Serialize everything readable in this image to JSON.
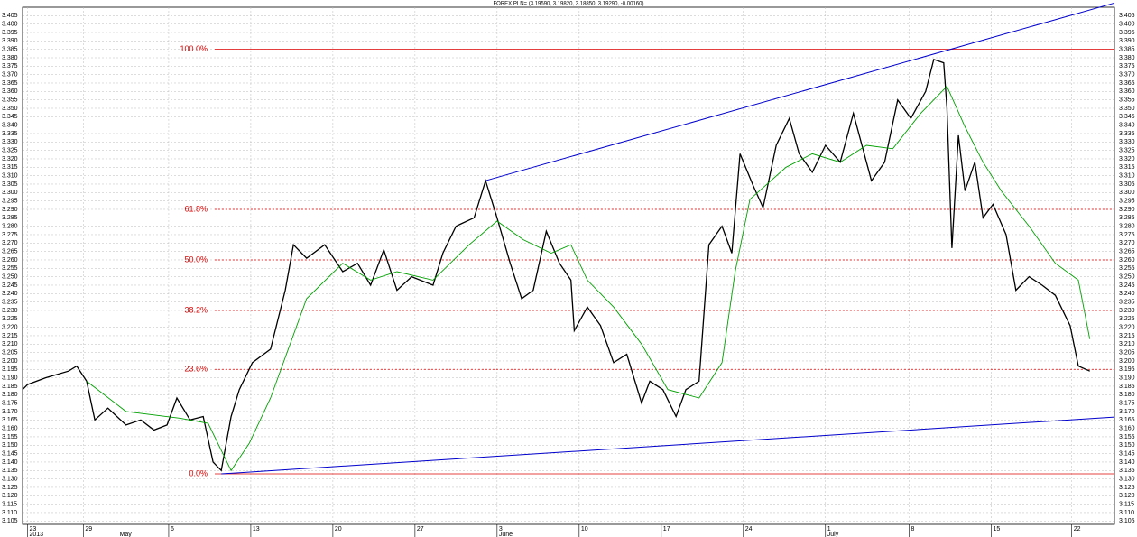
{
  "chart_data": {
    "type": "line",
    "title": "FOREX PLN= (3.19590, 3.19820, 3.18850, 3.19290, -0.00160)",
    "x": [
      -0.3,
      0,
      1.1,
      2.5,
      3.0,
      3.6,
      4.1,
      4.9,
      6.0,
      6.9,
      7.7,
      8.5,
      9.1,
      9.9,
      10.7,
      11.3,
      11.8,
      12.4,
      12.9,
      13.7,
      14.8,
      15.7,
      16.2,
      17.0,
      18.1,
      19.2,
      20.1,
      20.9,
      21.7,
      22.5,
      23.4,
      24.7,
      25.3,
      26.1,
      27.2,
      27.9,
      28.6,
      29.4,
      30.1,
      30.8,
      31.6,
      32.4,
      33.1,
      33.3,
      34.1,
      34.9,
      35.7,
      36.5,
      37.4,
      37.9,
      38.7,
      39.5,
      40.1,
      40.9,
      41.5,
      42.3,
      42.9,
      43.4,
      44.2,
      44.8,
      45.6,
      46.4,
      47.0,
      47.8,
      48.6,
      49.5,
      50.3,
      51.4,
      52.2,
      53.0,
      53.8,
      54.7,
      55.2,
      55.8,
      56.0,
      56.3,
      56.7,
      57.1,
      57.7,
      58.2,
      58.8,
      59.6,
      60.2,
      61.0,
      61.8,
      62.6,
      63.5,
      64.0,
      64.7
    ],
    "series": [
      {
        "color": "#000000",
        "values": [
          3.183,
          3.186,
          3.19,
          3.194,
          3.197,
          3.188,
          3.165,
          3.172,
          3.162,
          3.165,
          3.159,
          3.162,
          3.178,
          3.165,
          3.167,
          3.14,
          3.135,
          3.167,
          3.183,
          3.199,
          3.207,
          3.242,
          3.269,
          3.261,
          3.269,
          3.253,
          3.258,
          3.245,
          3.266,
          3.242,
          3.25,
          3.245,
          3.264,
          3.28,
          3.285,
          3.307,
          3.285,
          3.258,
          3.237,
          3.242,
          3.277,
          3.258,
          3.248,
          3.218,
          3.232,
          3.221,
          3.199,
          3.204,
          3.175,
          3.188,
          3.183,
          3.167,
          3.183,
          3.188,
          3.269,
          3.28,
          3.264,
          3.323,
          3.304,
          3.291,
          3.328,
          3.344,
          3.323,
          3.312,
          3.328,
          3.318,
          3.347,
          3.307,
          3.318,
          3.355,
          3.344,
          3.36,
          3.379,
          3.377,
          3.35,
          3.267,
          3.334,
          3.301,
          3.318,
          3.285,
          3.293,
          3.275,
          3.242,
          3.25,
          3.245,
          3.239,
          3.221,
          3.197,
          3.194
        ]
      },
      {
        "color": "#00a000",
        "x": [
          3.6,
          6.0,
          9.3,
          11.0,
          12.4,
          13.5,
          14.8,
          17.0,
          19.2,
          20.9,
          22.5,
          24.7,
          26.9,
          28.6,
          30.2,
          31.9,
          33.1,
          34.1,
          35.7,
          37.4,
          39.0,
          40.9,
          42.3,
          43.1,
          44.0,
          46.2,
          47.8,
          49.5,
          51.1,
          52.7,
          54.4,
          56.0,
          57.1,
          58.2,
          59.3,
          61.0,
          62.6,
          64.0,
          64.7
        ],
        "values": [
          3.188,
          3.17,
          3.166,
          3.163,
          3.135,
          3.151,
          3.178,
          3.237,
          3.258,
          3.248,
          3.253,
          3.248,
          3.269,
          3.283,
          3.272,
          3.264,
          3.269,
          3.248,
          3.232,
          3.21,
          3.183,
          3.178,
          3.199,
          3.253,
          3.296,
          3.315,
          3.323,
          3.318,
          3.328,
          3.326,
          3.347,
          3.363,
          3.339,
          3.318,
          3.301,
          3.28,
          3.258,
          3.248,
          3.213
        ]
      }
    ],
    "trendlines": [
      {
        "color": "#0000cc",
        "x": [
          27.9,
          66.2
        ],
        "values": [
          3.307,
          3.4125
        ]
      },
      {
        "color": "#0000cc",
        "x": [
          11.8,
          66.2
        ],
        "values": [
          3.133,
          3.1667
        ]
      }
    ],
    "levels": [
      {
        "label": "100.0%",
        "value": 3.385
      },
      {
        "label": "61.8%",
        "value": 3.29
      },
      {
        "label": "50.0%",
        "value": 3.26
      },
      {
        "label": "38.2%",
        "value": 3.23
      },
      {
        "label": "23.6%",
        "value": 3.195
      },
      {
        "label": "0.0%",
        "value": 3.133
      }
    ],
    "level_color": "#dd0000",
    "xlim": [
      -0.3,
      66.2
    ],
    "ylim": [
      3.103,
      3.41
    ],
    "grid": true,
    "xticks": [
      {
        "value": 0,
        "label": "23"
      },
      {
        "value": 3.4,
        "label": "29"
      },
      {
        "value": 8.6,
        "label": "6"
      },
      {
        "value": 13.6,
        "label": "13"
      },
      {
        "value": 18.6,
        "label": "20"
      },
      {
        "value": 23.6,
        "label": "27"
      },
      {
        "value": 28.6,
        "label": "3"
      },
      {
        "value": 33.6,
        "label": "10"
      },
      {
        "value": 38.6,
        "label": "17"
      },
      {
        "value": 43.6,
        "label": "24"
      },
      {
        "value": 48.6,
        "label": "1"
      },
      {
        "value": 53.7,
        "label": "8"
      },
      {
        "value": 58.7,
        "label": "15"
      },
      {
        "value": 63.6,
        "label": "22"
      }
    ],
    "x_groups": [
      {
        "value": 0,
        "label": "2013"
      },
      {
        "value": 5.5,
        "label": "May"
      },
      {
        "value": 28.6,
        "label": "June"
      },
      {
        "value": 48.6,
        "label": "July"
      }
    ],
    "yticks": [
      3.105,
      {
        "value": 3.11,
        "label": "3.110"
      },
      3.115,
      {
        "value": 3.12,
        "label": "3.120"
      },
      3.125,
      {
        "value": 3.13,
        "label": "3.130"
      },
      3.135,
      {
        "value": 3.14,
        "label": "3.140"
      },
      3.145,
      {
        "value": 3.15,
        "label": "3.150"
      },
      3.155,
      {
        "value": 3.16,
        "label": "3.160"
      },
      3.165,
      {
        "value": 3.17,
        "label": "3.170"
      },
      3.175,
      {
        "value": 3.18,
        "label": "3.180"
      },
      3.185,
      {
        "value": 3.19,
        "label": "3.190"
      },
      3.195,
      {
        "value": 3.2,
        "label": "3.200"
      },
      3.205,
      {
        "value": 3.21,
        "label": "3.210"
      },
      3.215,
      {
        "value": 3.22,
        "label": "3.220"
      },
      3.225,
      {
        "value": 3.23,
        "label": "3.230"
      },
      3.235,
      {
        "value": 3.24,
        "label": "3.240"
      },
      3.245,
      {
        "value": 3.25,
        "label": "3.250"
      },
      3.255,
      {
        "value": 3.26,
        "label": "3.260"
      },
      3.265,
      {
        "value": 3.27,
        "label": "3.270"
      },
      3.275,
      {
        "value": 3.28,
        "label": "3.280"
      },
      3.285,
      {
        "value": 3.29,
        "label": "3.290"
      },
      3.295,
      {
        "value": 3.3,
        "label": "3.300"
      },
      3.305,
      {
        "value": 3.31,
        "label": "3.310"
      },
      3.315,
      {
        "value": 3.32,
        "label": "3.320"
      },
      3.325,
      {
        "value": 3.33,
        "label": "3.330"
      },
      3.335,
      {
        "value": 3.34,
        "label": "3.340"
      },
      3.345,
      {
        "value": 3.35,
        "label": "3.350"
      },
      3.355,
      {
        "value": 3.36,
        "label": "3.360"
      },
      3.365,
      {
        "value": 3.37,
        "label": "3.370"
      },
      3.375,
      {
        "value": 3.38,
        "label": "3.380"
      },
      3.385,
      {
        "value": 3.39,
        "label": "3.390"
      },
      3.395,
      {
        "value": 3.4,
        "label": "3.400"
      },
      3.405
    ]
  }
}
